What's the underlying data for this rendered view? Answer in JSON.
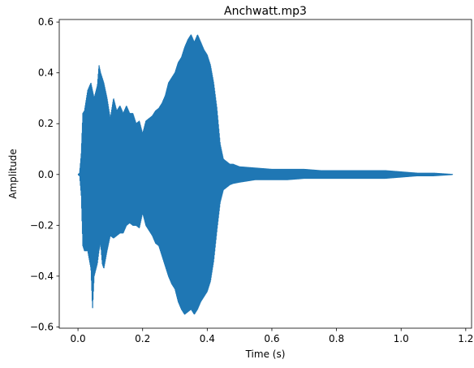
{
  "chart_data": {
    "type": "line",
    "title": "Anchwatt.mp3",
    "xlabel": "Time (s)",
    "ylabel": "Amplitude",
    "xlim": [
      -0.058,
      1.218
    ],
    "ylim": [
      -0.605,
      0.61
    ],
    "xticks": [
      0.0,
      0.2,
      0.4,
      0.6,
      0.8,
      1.0,
      1.2
    ],
    "xtick_labels": [
      "0.0",
      "0.2",
      "0.4",
      "0.6",
      "0.8",
      "1.0",
      "1.2"
    ],
    "yticks": [
      -0.6,
      -0.4,
      -0.2,
      0.0,
      0.2,
      0.4,
      0.6
    ],
    "ytick_labels": [
      "−0.6",
      "−0.4",
      "−0.2",
      "0.0",
      "0.2",
      "0.4",
      "0.6"
    ],
    "grid": false,
    "series": [
      {
        "color": "#1f77b4",
        "x_range": [
          0.0,
          1.16
        ],
        "envelope_time": [
          0.0,
          0.005,
          0.01,
          0.015,
          0.02,
          0.03,
          0.04,
          0.045,
          0.05,
          0.06,
          0.065,
          0.07,
          0.075,
          0.08,
          0.09,
          0.1,
          0.11,
          0.12,
          0.13,
          0.14,
          0.15,
          0.16,
          0.17,
          0.18,
          0.19,
          0.2,
          0.21,
          0.22,
          0.23,
          0.24,
          0.25,
          0.26,
          0.27,
          0.28,
          0.29,
          0.3,
          0.31,
          0.32,
          0.33,
          0.34,
          0.35,
          0.36,
          0.37,
          0.38,
          0.39,
          0.4,
          0.41,
          0.42,
          0.43,
          0.44,
          0.45,
          0.46,
          0.47,
          0.48,
          0.5,
          0.55,
          0.6,
          0.65,
          0.7,
          0.75,
          0.8,
          0.85,
          0.9,
          0.95,
          1.0,
          1.05,
          1.1,
          1.16
        ],
        "envelope_upper": [
          0.0,
          0.005,
          0.08,
          0.24,
          0.25,
          0.33,
          0.36,
          0.33,
          0.3,
          0.35,
          0.43,
          0.4,
          0.38,
          0.36,
          0.3,
          0.22,
          0.3,
          0.25,
          0.27,
          0.24,
          0.27,
          0.24,
          0.24,
          0.2,
          0.21,
          0.16,
          0.21,
          0.22,
          0.23,
          0.25,
          0.26,
          0.28,
          0.31,
          0.36,
          0.38,
          0.4,
          0.44,
          0.46,
          0.5,
          0.53,
          0.55,
          0.52,
          0.55,
          0.52,
          0.49,
          0.47,
          0.43,
          0.36,
          0.26,
          0.12,
          0.06,
          0.05,
          0.04,
          0.04,
          0.03,
          0.025,
          0.02,
          0.02,
          0.02,
          0.015,
          0.015,
          0.015,
          0.015,
          0.015,
          0.01,
          0.005,
          0.005,
          0.0
        ],
        "envelope_lower": [
          0.0,
          -0.005,
          -0.08,
          -0.28,
          -0.3,
          -0.3,
          -0.37,
          -0.53,
          -0.4,
          -0.35,
          -0.3,
          -0.27,
          -0.35,
          -0.37,
          -0.3,
          -0.24,
          -0.25,
          -0.24,
          -0.23,
          -0.23,
          -0.2,
          -0.19,
          -0.2,
          -0.2,
          -0.21,
          -0.15,
          -0.2,
          -0.22,
          -0.24,
          -0.27,
          -0.28,
          -0.32,
          -0.36,
          -0.4,
          -0.43,
          -0.45,
          -0.5,
          -0.53,
          -0.55,
          -0.54,
          -0.53,
          -0.55,
          -0.53,
          -0.5,
          -0.48,
          -0.46,
          -0.42,
          -0.34,
          -0.22,
          -0.11,
          -0.06,
          -0.05,
          -0.04,
          -0.035,
          -0.03,
          -0.02,
          -0.02,
          -0.02,
          -0.015,
          -0.015,
          -0.015,
          -0.015,
          -0.015,
          -0.015,
          -0.01,
          -0.005,
          -0.005,
          0.0
        ]
      }
    ]
  }
}
